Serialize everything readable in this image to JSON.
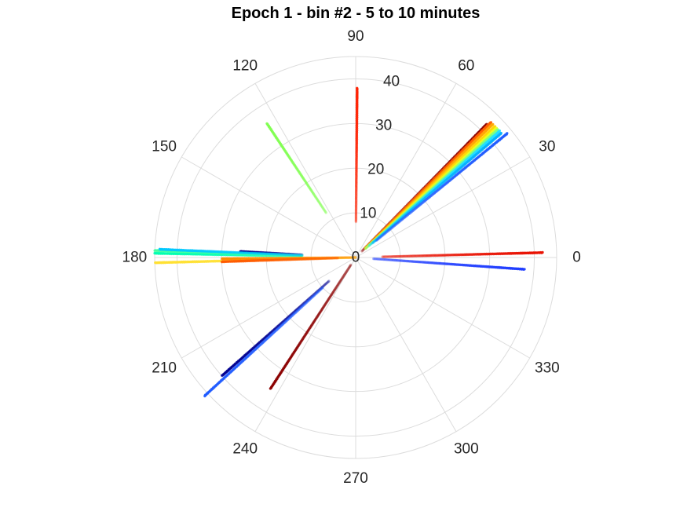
{
  "chart_data": {
    "type": "polar-scatter",
    "title": "Epoch 1 - bin #2 - 5 to 10 minutes",
    "angle_ticks": [
      "0",
      "30",
      "60",
      "90",
      "120",
      "150",
      "180",
      "210",
      "240",
      "270",
      "300",
      "330"
    ],
    "angle_tick_values": [
      0,
      30,
      60,
      90,
      120,
      150,
      180,
      210,
      240,
      270,
      300,
      330
    ],
    "radius_ticks": [
      "0",
      "10",
      "20",
      "30",
      "40"
    ],
    "radius_tick_values": [
      0,
      10,
      20,
      30,
      40
    ],
    "rlim": [
      0,
      45
    ],
    "radius_label_angle": 80,
    "grid": true,
    "colormap": "jet",
    "series": [
      {
        "color": "#ff2000",
        "angle": 89.5,
        "r_start": 8,
        "r_end": 38
      },
      {
        "color": "#8b0000",
        "angle": 45.5,
        "r_start": 2,
        "r_end": 42
      },
      {
        "color": "#ff6000",
        "angle": 45.0,
        "r_start": 3,
        "r_end": 43
      },
      {
        "color": "#ffa500",
        "angle": 44.2,
        "r_start": 3,
        "r_end": 43
      },
      {
        "color": "#ffd700",
        "angle": 43.3,
        "r_start": 3,
        "r_end": 43
      },
      {
        "color": "#e8ff20",
        "angle": 42.6,
        "r_start": 3,
        "r_end": 43
      },
      {
        "color": "#7fff80",
        "angle": 42.0,
        "r_start": 3,
        "r_end": 43
      },
      {
        "color": "#20e0ff",
        "angle": 41.3,
        "r_start": 4,
        "r_end": 43
      },
      {
        "color": "#00b0ff",
        "angle": 40.5,
        "r_start": 5,
        "r_end": 43
      },
      {
        "color": "#1e5aff",
        "angle": 39.3,
        "r_start": 6,
        "r_end": 44
      },
      {
        "color": "#80ff50",
        "angle": 123.5,
        "r_start": 12,
        "r_end": 36
      },
      {
        "color": "#e81000",
        "angle": 1.5,
        "r_start": 6,
        "r_end": 42
      },
      {
        "color": "#1e3cff",
        "angle": -4.0,
        "r_start": 4,
        "r_end": 38
      },
      {
        "color": "#000090",
        "angle": 177.0,
        "r_start": 12,
        "r_end": 26
      },
      {
        "color": "#00ffb0",
        "angle": 178.8,
        "r_start": 12,
        "r_end": 45
      },
      {
        "color": "#40ffa0",
        "angle": 178.0,
        "r_start": 12,
        "r_end": 45
      },
      {
        "color": "#00c8ff",
        "angle": 177.6,
        "r_start": 12,
        "r_end": 44
      },
      {
        "color": "#ffe030",
        "angle": 181.5,
        "r_start": 0,
        "r_end": 45
      },
      {
        "color": "#ff8c00",
        "angle": 180.5,
        "r_start": 0,
        "r_end": 30
      },
      {
        "color": "#ff5a00",
        "angle": 181.8,
        "r_start": 4,
        "r_end": 30
      },
      {
        "color": "#000090",
        "angle": 221.5,
        "r_start": 8,
        "r_end": 40
      },
      {
        "color": "#1e5aff",
        "angle": 222.5,
        "r_start": 10,
        "r_end": 46
      },
      {
        "color": "#8b0000",
        "angle": 237.0,
        "r_start": 2,
        "r_end": 35
      }
    ]
  }
}
